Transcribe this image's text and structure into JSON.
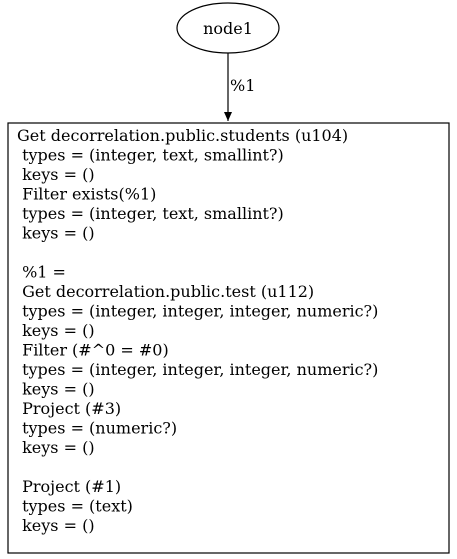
{
  "graph": {
    "top_node": {
      "label": "node1"
    },
    "edge": {
      "label": "%1"
    },
    "plan_box": {
      "lines": [
        "Get decorrelation.public.students (u104)",
        " types = (integer, text, smallint?)",
        " keys = ()",
        " Filter exists(%1)",
        " types = (integer, text, smallint?)",
        " keys = ()",
        "",
        " %1 =",
        " Get decorrelation.public.test (u112)",
        " types = (integer, integer, integer, numeric?)",
        " keys = ()",
        " Filter (#^0 = #0)",
        " types = (integer, integer, integer, numeric?)",
        " keys = ()",
        " Project (#3)",
        " types = (numeric?)",
        " keys = ()",
        "",
        " Project (#1)",
        " types = (text)",
        " keys = ()"
      ]
    }
  }
}
